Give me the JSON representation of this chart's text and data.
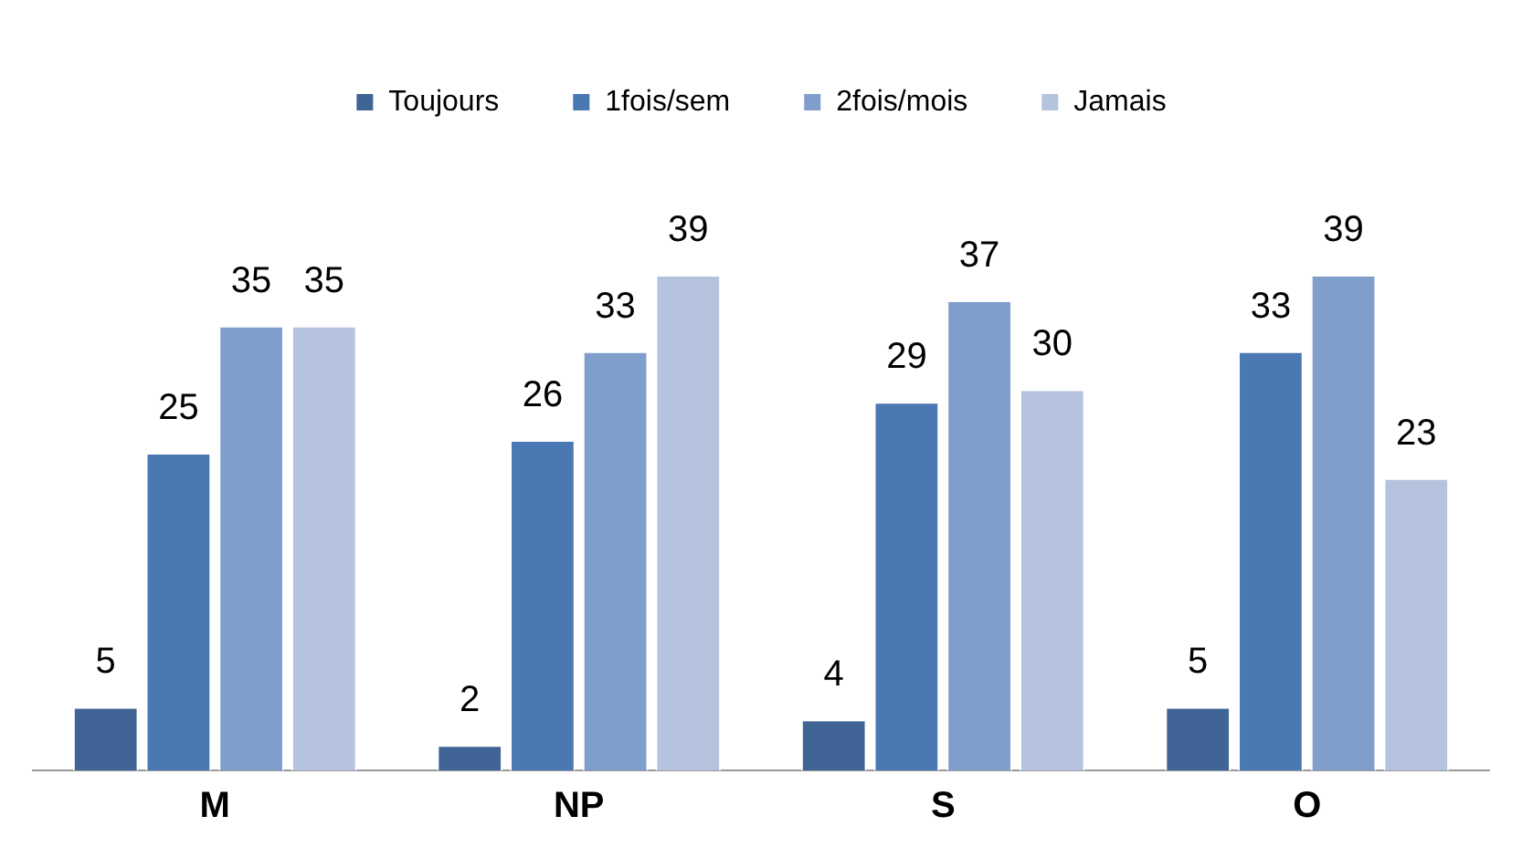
{
  "chart_data": {
    "type": "bar",
    "categories": [
      "M",
      "NP",
      "S",
      "O"
    ],
    "series": [
      {
        "name": "Toujours",
        "color": "#3f6495",
        "values": [
          5,
          2,
          4,
          5
        ]
      },
      {
        "name": "1fois/sem",
        "color": "#4a78b2",
        "values": [
          25,
          26,
          29,
          33
        ]
      },
      {
        "name": "2fois/mois",
        "color": "#7f9ecb",
        "values": [
          35,
          33,
          37,
          39
        ]
      },
      {
        "name": "Jamais",
        "color": "#b5c3de",
        "values": [
          35,
          39,
          30,
          23
        ]
      }
    ],
    "data_labels": true,
    "legend": "top",
    "grid": false
  }
}
